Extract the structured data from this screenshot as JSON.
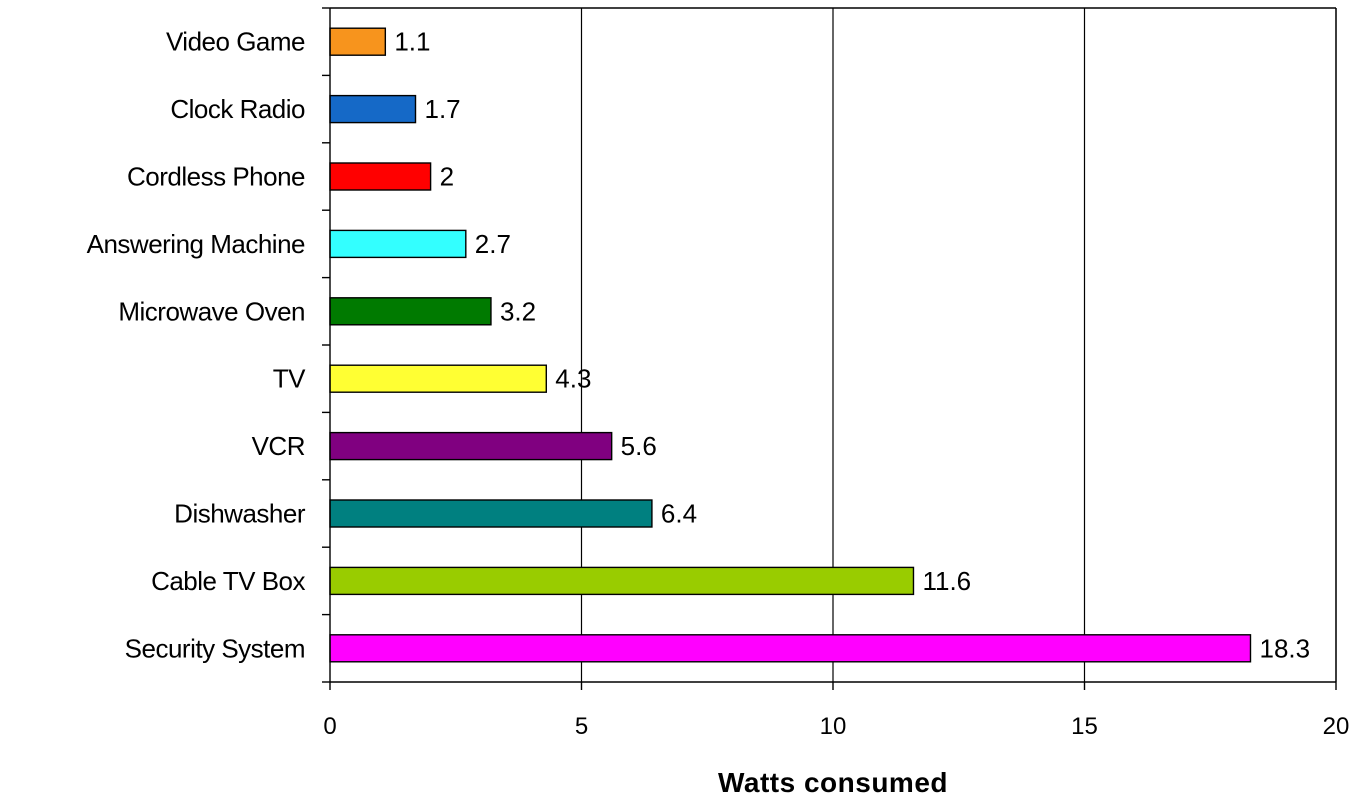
{
  "chart_data": {
    "type": "bar",
    "orientation": "horizontal",
    "categories": [
      "Video Game",
      "Clock Radio",
      "Cordless Phone",
      "Answering Machine",
      "Microwave Oven",
      "TV",
      "VCR",
      "Dishwasher",
      "Cable TV Box",
      "Security System"
    ],
    "values": [
      1.1,
      1.7,
      2,
      2.7,
      3.2,
      4.3,
      5.6,
      6.4,
      11.6,
      18.3
    ],
    "data_labels": [
      "1.1",
      "1.7",
      "2",
      "2.7",
      "3.2",
      "4.3",
      "5.6",
      "6.4",
      "11.6",
      "18.3"
    ],
    "colors": [
      "#f7941d",
      "#1569c7",
      "#ff0000",
      "#33ffff",
      "#007a00",
      "#ffff33",
      "#800080",
      "#008080",
      "#99cc00",
      "#ff00ff"
    ],
    "title": "",
    "xlabel": "Watts consumed",
    "ylabel": "",
    "xlim": [
      0,
      20
    ],
    "xticks": [
      0,
      5,
      10,
      15,
      20
    ],
    "xtick_labels": [
      "0",
      "5",
      "10",
      "15",
      "20"
    ],
    "grid": "vertical major gridlines",
    "legend": "none"
  }
}
